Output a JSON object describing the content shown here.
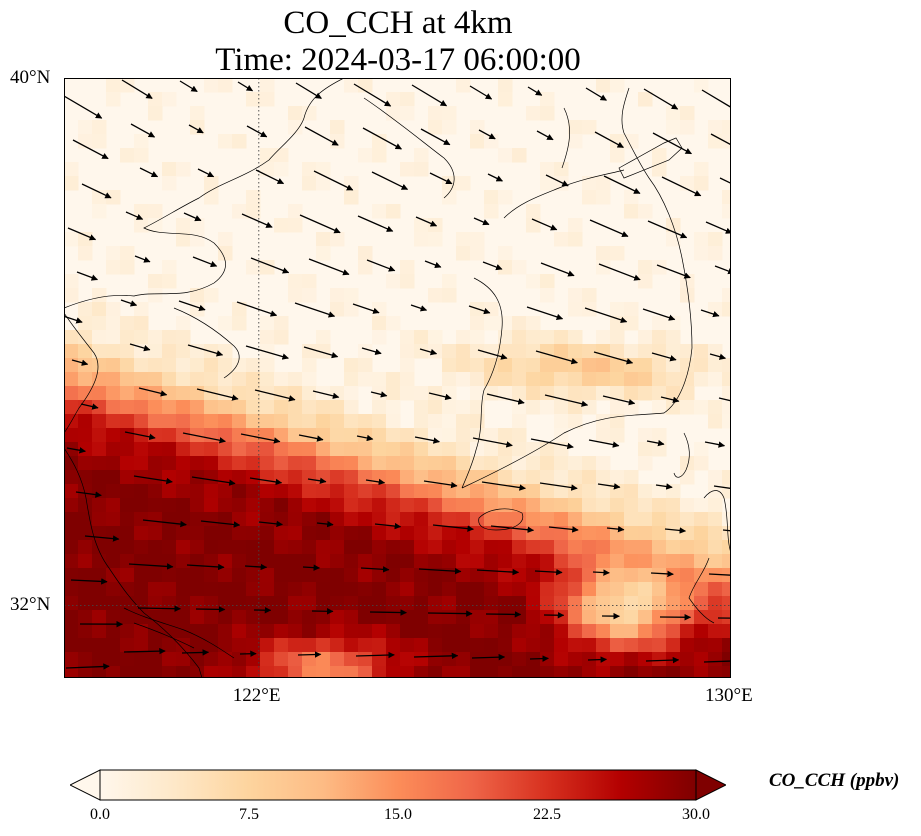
{
  "title": {
    "line1": "CO_CCH at 4km",
    "line2": "Time: 2024-03-17 06:00:00"
  },
  "map": {
    "lon_range": [
      118.7,
      130.0
    ],
    "lat_range": [
      30.9,
      40.0
    ],
    "lat_ticks": [
      {
        "value": 40,
        "label": "40°N"
      },
      {
        "value": 32,
        "label": "32°N"
      }
    ],
    "lon_ticks": [
      {
        "value": 122,
        "label": "122°E"
      },
      {
        "value": 130,
        "label": "130°E"
      }
    ],
    "gridlines": true,
    "field_variable": "CO_CCH",
    "colormap": "OrRd",
    "wind_vectors": true
  },
  "colorbar": {
    "label": "CO_CCH (ppbv)",
    "min": 0.0,
    "max": 30.0,
    "ticks": [
      "0.0",
      "7.5",
      "15.0",
      "22.5",
      "30.0"
    ],
    "extend": "both",
    "colors": [
      "#fff7ec",
      "#fee8c8",
      "#fdd49e",
      "#fdbb84",
      "#fc8d59",
      "#ef6548",
      "#d7301f",
      "#b30000",
      "#7f0000"
    ]
  }
}
